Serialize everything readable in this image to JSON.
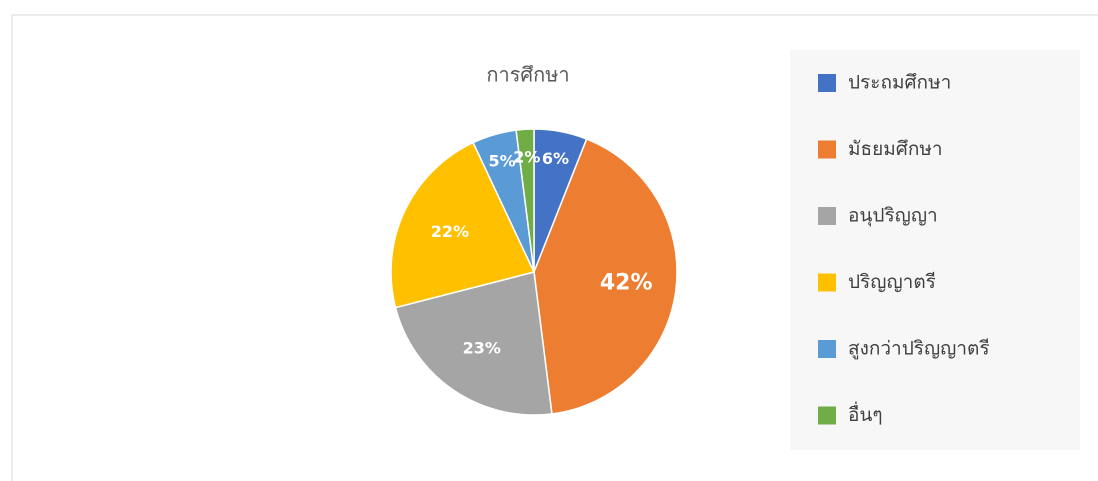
{
  "chart_data": {
    "type": "pie",
    "title": "การศึกษา",
    "categories": [
      "ประถมศึกษา",
      "มัธยมศึกษา",
      "อนุปริญญา",
      "ปริญญาตรี",
      "สูงกว่าปริญญาตรี",
      "อื่นๆ"
    ],
    "values": [
      6,
      42,
      23,
      22,
      5,
      2
    ],
    "value_labels": [
      "6%",
      "42%",
      "23%",
      "22%",
      "5%",
      "2%"
    ],
    "colors": [
      "#4472c4",
      "#ed7d31",
      "#a5a5a5",
      "#ffc000",
      "#5b9bd5",
      "#70ad47"
    ],
    "legend": "right"
  }
}
